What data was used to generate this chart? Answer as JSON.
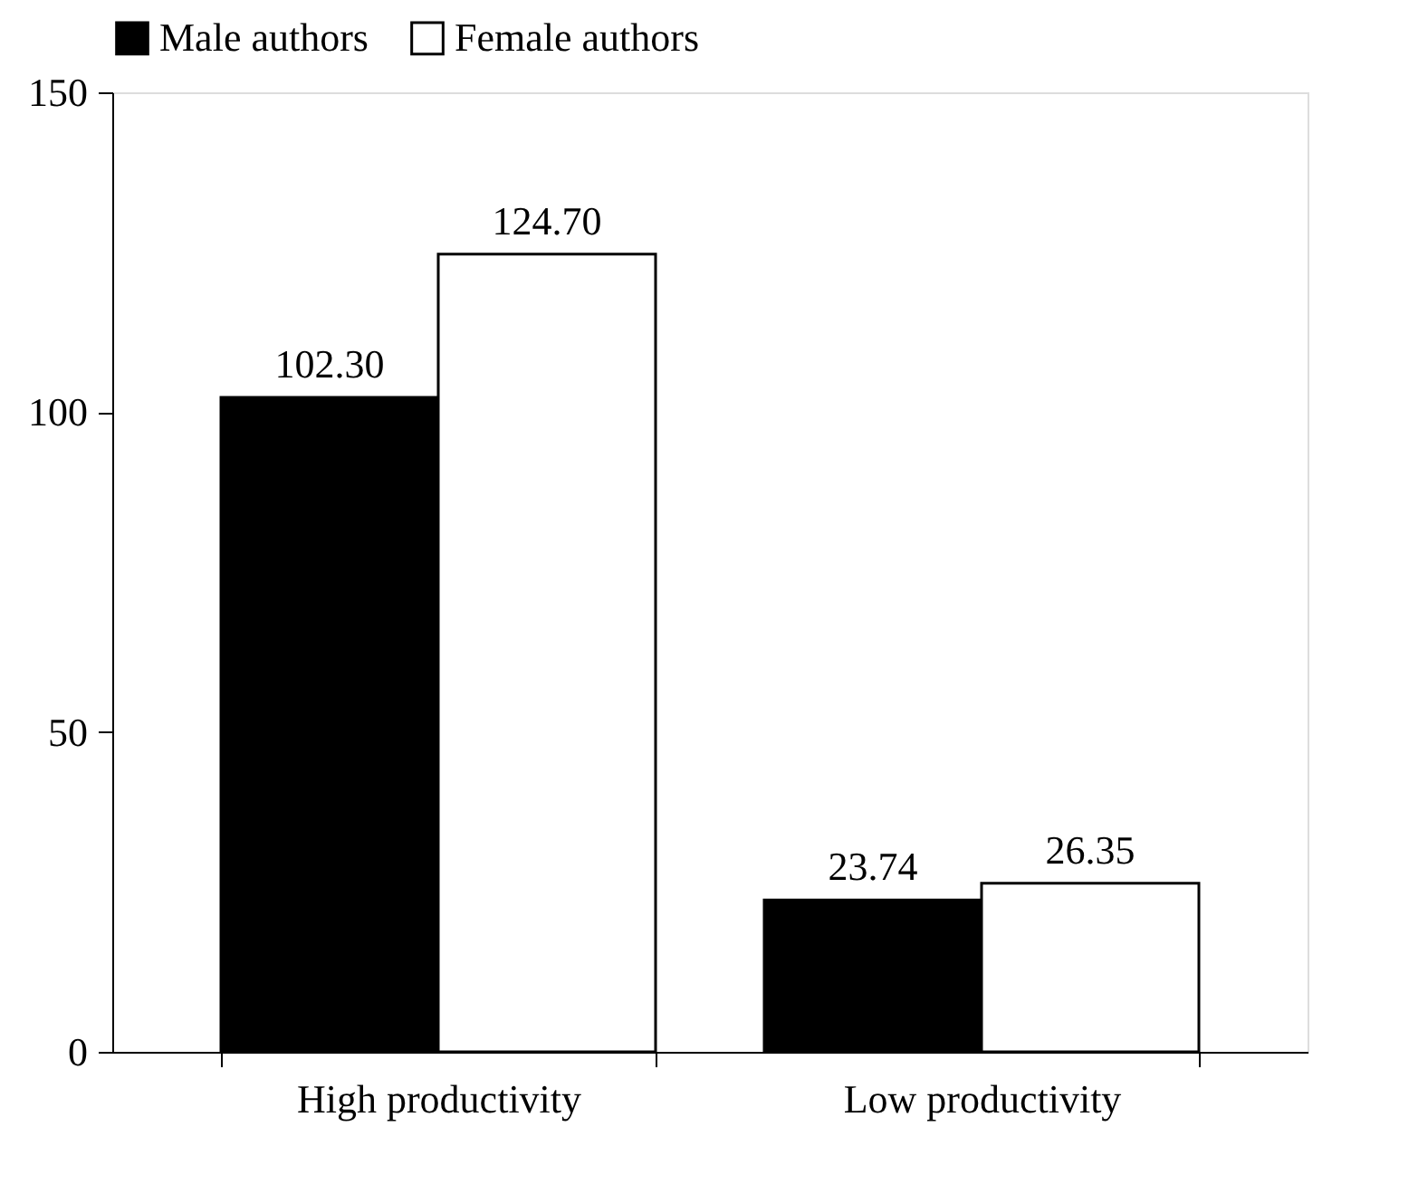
{
  "chart_data": {
    "type": "bar",
    "categories": [
      "High productivity",
      "Low productivity"
    ],
    "series": [
      {
        "name": "Male authors",
        "color": "#000000",
        "values": [
          102.3,
          23.74
        ],
        "value_labels": [
          "102.30",
          "23.74"
        ]
      },
      {
        "name": "Female authors",
        "color": "#ffffff",
        "values": [
          124.7,
          26.35
        ],
        "value_labels": [
          "124.70",
          "26.35"
        ]
      }
    ],
    "ylim": [
      0,
      150
    ],
    "yticks": [
      0,
      50,
      100,
      150
    ],
    "grid": false,
    "legend": "top"
  }
}
